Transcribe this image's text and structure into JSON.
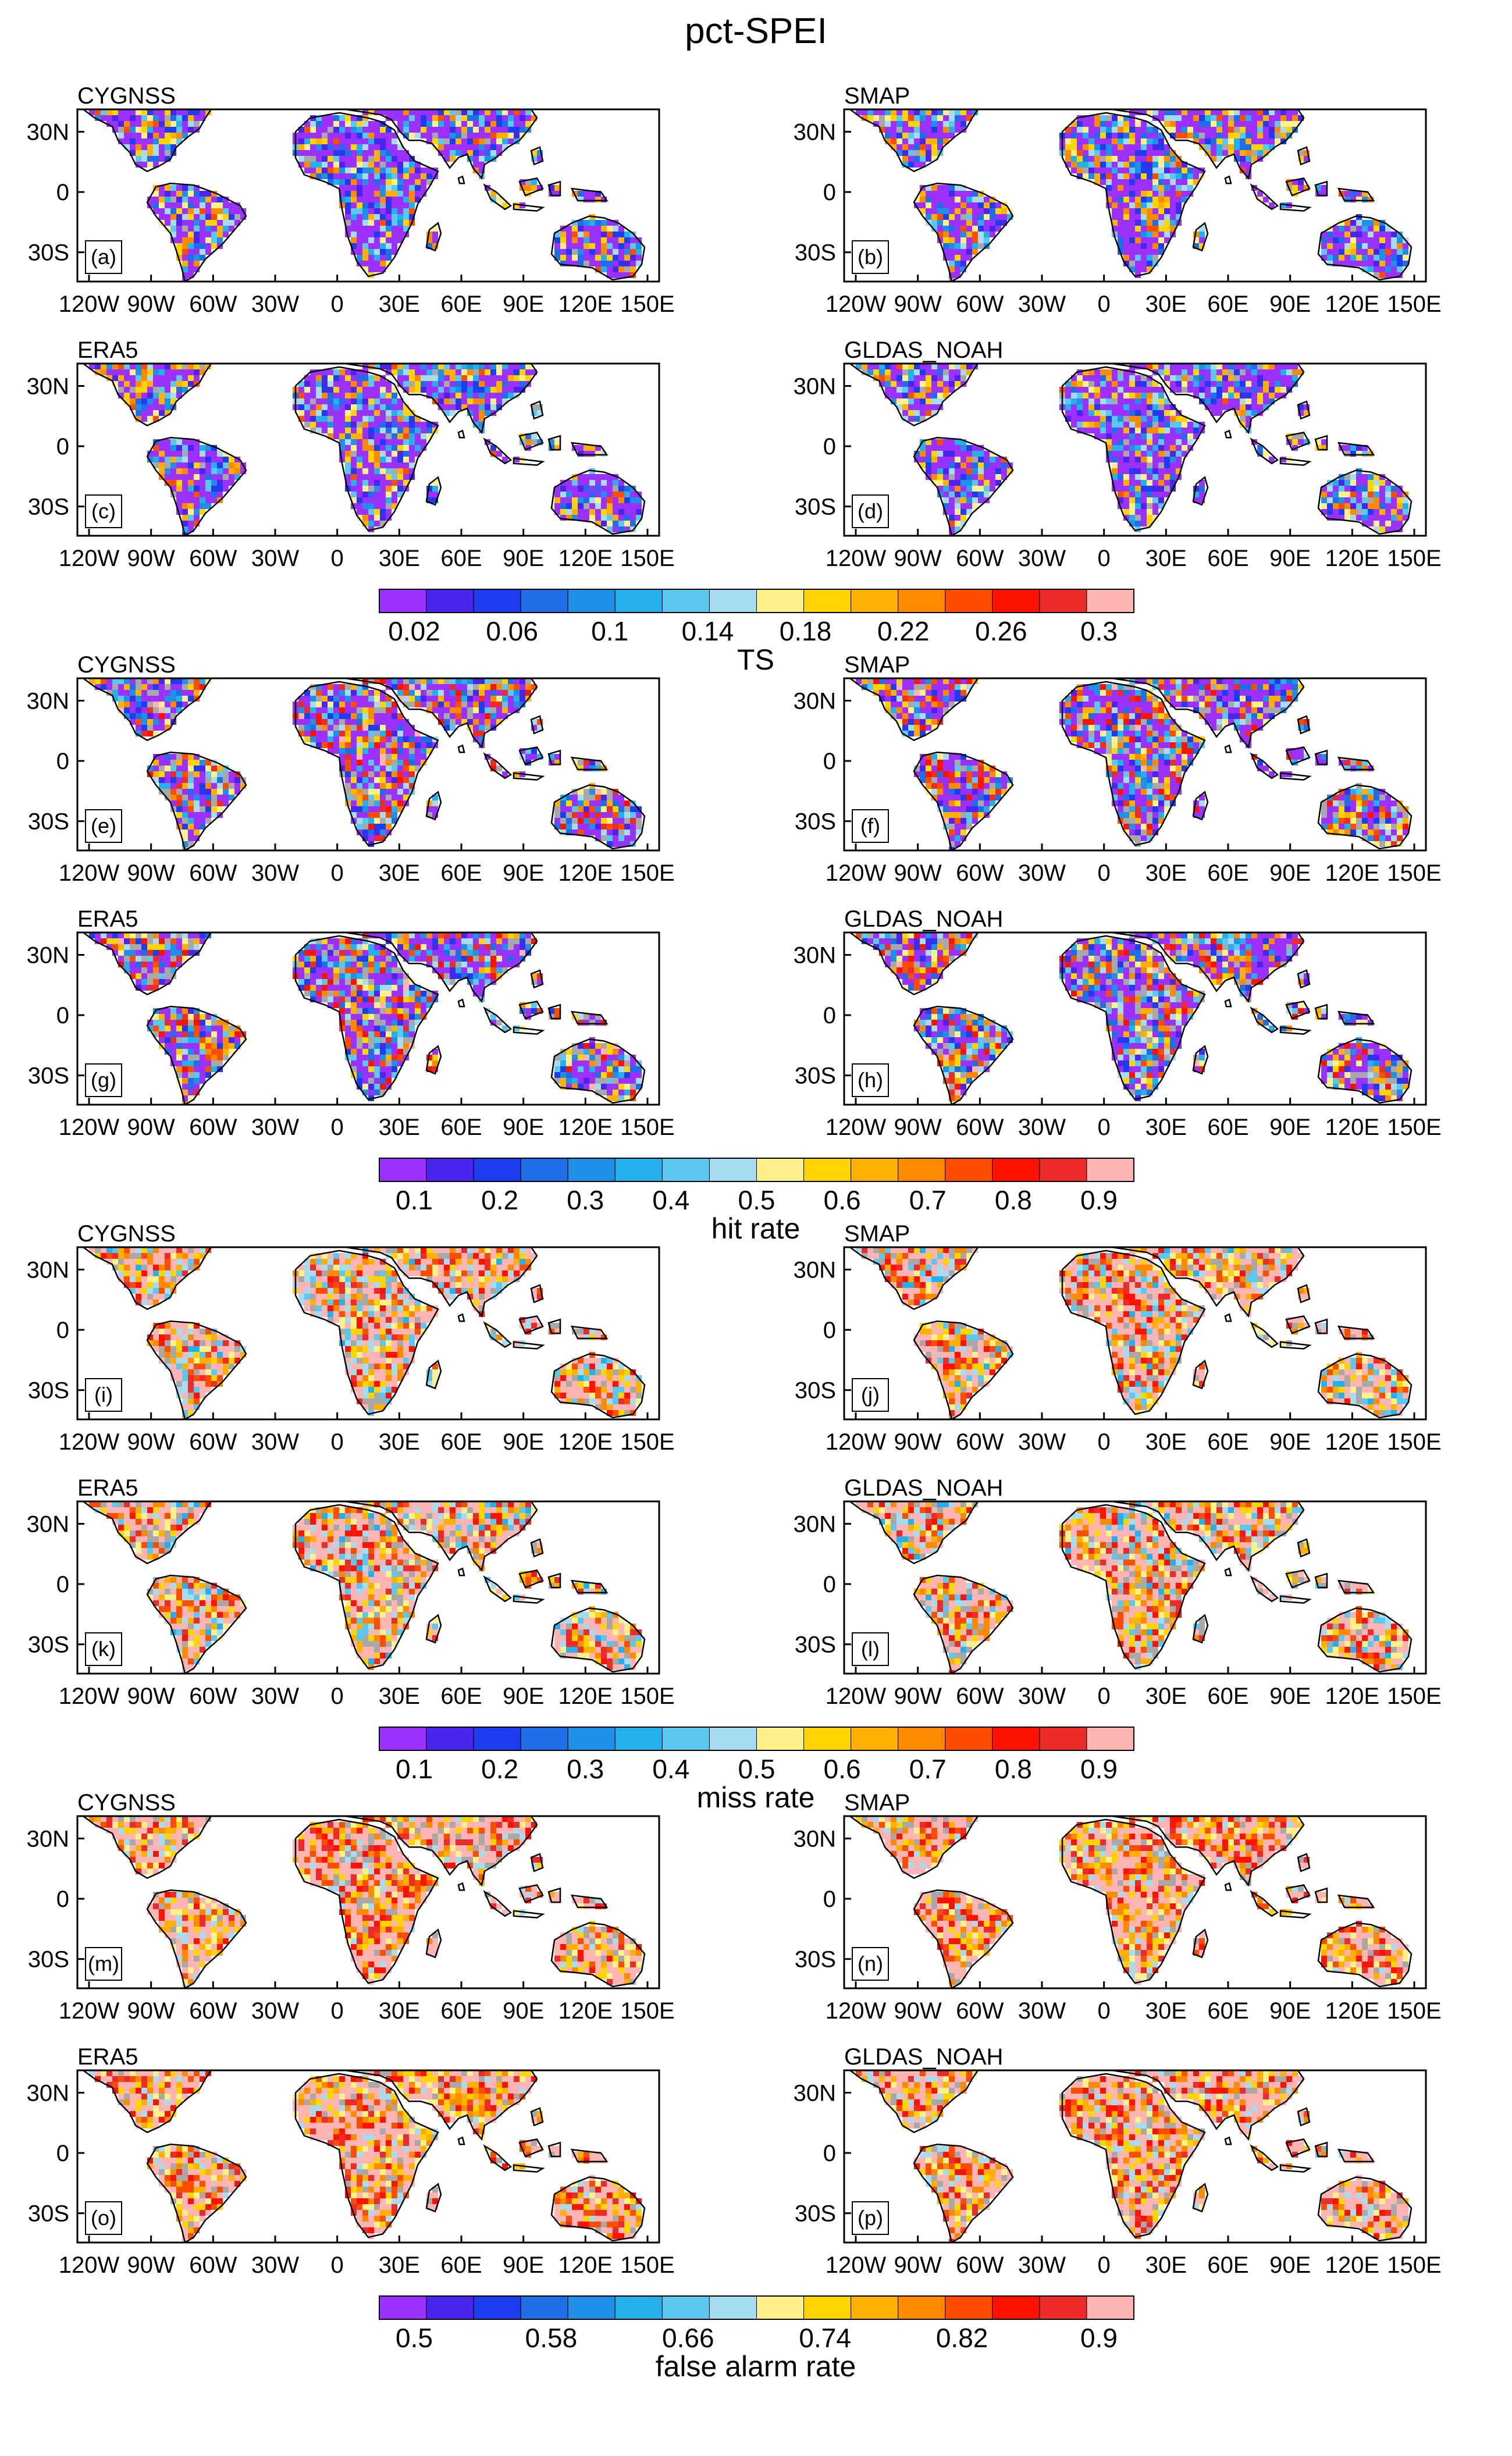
{
  "figure": {
    "title": "pct-SPEI",
    "x_tick_labels": [
      "120W",
      "90W",
      "60W",
      "30W",
      "0",
      "30E",
      "60E",
      "90E",
      "120E",
      "150E"
    ],
    "y_tick_labels": [
      "30N",
      "0",
      "30S"
    ],
    "colors": {
      "missing": "#a8a8a8",
      "scale": [
        "#9b30ff",
        "#4b25ee",
        "#1e3df0",
        "#1f6ee8",
        "#1e90e8",
        "#24b0ec",
        "#5ac8f0",
        "#a6dcf0",
        "#fff08a",
        "#ffd400",
        "#ffb000",
        "#ff8a00",
        "#ff4d00",
        "#ff1200",
        "#ee2b2b",
        "#ffb4b4"
      ]
    },
    "panel_sets": [
      {
        "metric": "TS",
        "colorbar_labels": [
          "0.02",
          "0.06",
          "0.1",
          "0.14",
          "0.18",
          "0.22",
          "0.26",
          "0.3"
        ],
        "panels": [
          {
            "letter": "(a)",
            "dataset": "CYGNSS"
          },
          {
            "letter": "(b)",
            "dataset": "SMAP"
          },
          {
            "letter": "(c)",
            "dataset": "ERA5"
          },
          {
            "letter": "(d)",
            "dataset": "GLDAS_NOAH"
          }
        ]
      },
      {
        "metric": "hit rate",
        "colorbar_labels": [
          "0.1",
          "0.2",
          "0.3",
          "0.4",
          "0.5",
          "0.6",
          "0.7",
          "0.8",
          "0.9"
        ],
        "panels": [
          {
            "letter": "(e)",
            "dataset": "CYGNSS"
          },
          {
            "letter": "(f)",
            "dataset": "SMAP"
          },
          {
            "letter": "(g)",
            "dataset": "ERA5"
          },
          {
            "letter": "(h)",
            "dataset": "GLDAS_NOAH"
          }
        ]
      },
      {
        "metric": "miss rate",
        "colorbar_labels": [
          "0.1",
          "0.2",
          "0.3",
          "0.4",
          "0.5",
          "0.6",
          "0.7",
          "0.8",
          "0.9"
        ],
        "panels": [
          {
            "letter": "(i)",
            "dataset": "CYGNSS"
          },
          {
            "letter": "(j)",
            "dataset": "SMAP"
          },
          {
            "letter": "(k)",
            "dataset": "ERA5"
          },
          {
            "letter": "(l)",
            "dataset": "GLDAS_NOAH"
          }
        ]
      },
      {
        "metric": "false alarm rate",
        "colorbar_labels": [
          "0.5",
          "0.58",
          "0.66",
          "0.74",
          "0.82",
          "0.9"
        ],
        "panels": [
          {
            "letter": "(m)",
            "dataset": "CYGNSS"
          },
          {
            "letter": "(n)",
            "dataset": "SMAP"
          },
          {
            "letter": "(o)",
            "dataset": "ERA5"
          },
          {
            "letter": "(p)",
            "dataset": "GLDAS_NOAH"
          }
        ]
      }
    ]
  }
}
